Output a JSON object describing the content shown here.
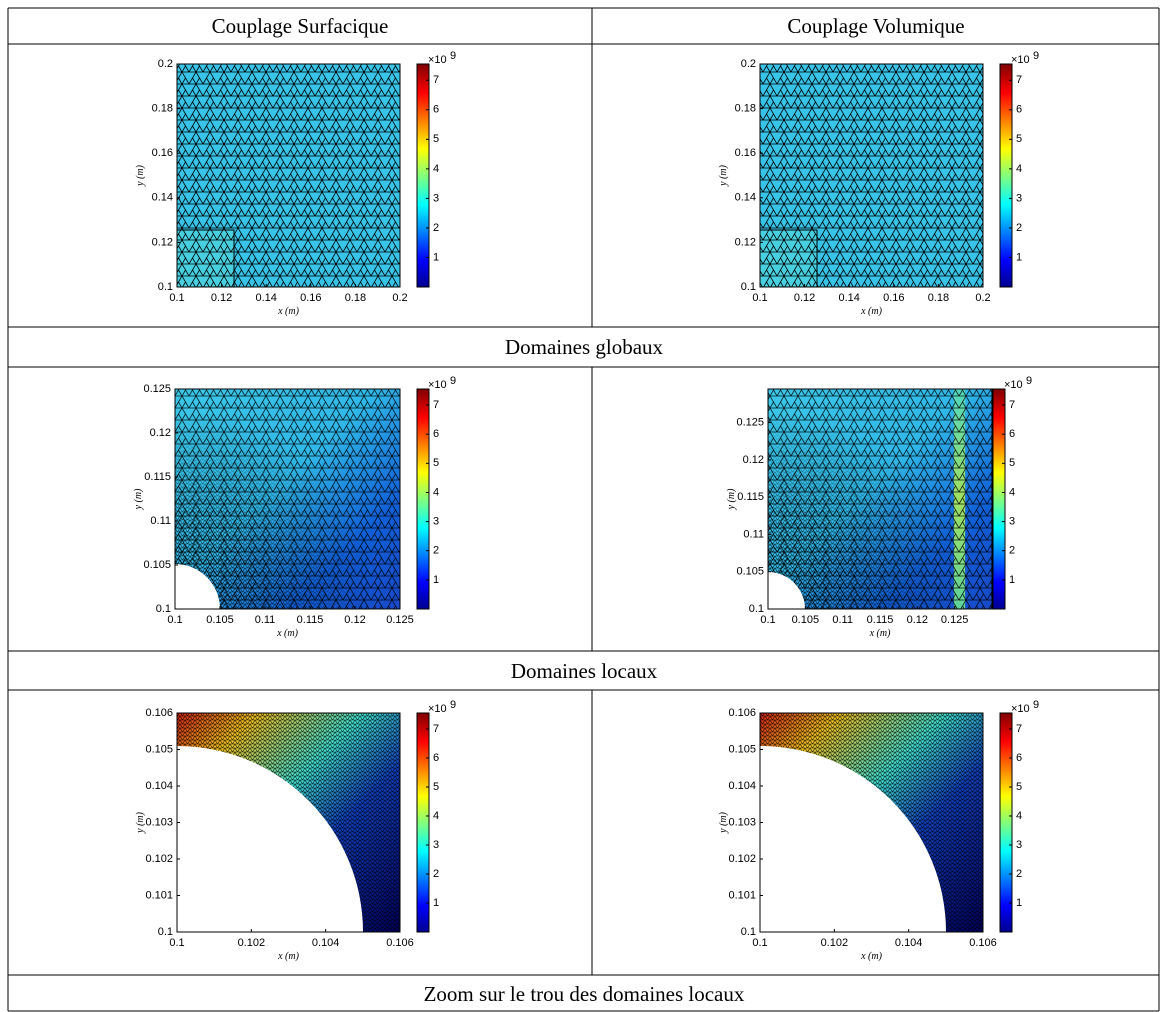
{
  "header": {
    "columns": [
      "Couplage Surfacique",
      "Couplage Volumique"
    ]
  },
  "rows": [
    {
      "plots": [
        {
          "xlim": [
            0.1,
            0.2
          ],
          "xticks": [
            0.1,
            0.12,
            0.14,
            0.16,
            0.18,
            0.2
          ],
          "ylim": [
            0.1,
            0.2
          ],
          "yticks": [
            0.1,
            0.12,
            0.14,
            0.16,
            0.18,
            0.2
          ],
          "xlabel": "x (m)",
          "ylabel": "y (m)",
          "colorbar": {
            "lim": [
              0,
              7.55
            ],
            "ticks": [
              1,
              2,
              3,
              4,
              5,
              6,
              7
            ],
            "exponent": "×10",
            "power": "9"
          }
        },
        {
          "xlim": [
            0.1,
            0.2
          ],
          "xticks": [
            0.1,
            0.12,
            0.14,
            0.16,
            0.18,
            0.2
          ],
          "ylim": [
            0.1,
            0.2
          ],
          "yticks": [
            0.1,
            0.12,
            0.14,
            0.16,
            0.18,
            0.2
          ],
          "xlabel": "x (m)",
          "ylabel": "y (m)",
          "colorbar": {
            "lim": [
              0,
              7.55
            ],
            "ticks": [
              1,
              2,
              3,
              4,
              5,
              6,
              7
            ],
            "exponent": "×10",
            "power": "9"
          }
        }
      ],
      "caption": "Domaines globaux"
    },
    {
      "plots": [
        {
          "xlim": [
            0.1,
            0.125
          ],
          "xticks": [
            0.1,
            0.105,
            0.11,
            0.115,
            0.12,
            0.125
          ],
          "ylim": [
            0.1,
            0.125
          ],
          "yticks": [
            0.1,
            0.105,
            0.11,
            0.115,
            0.12,
            0.125
          ],
          "xlabel": "x (m)",
          "ylabel": "y (m)",
          "colorbar": {
            "lim": [
              0,
              7.55
            ],
            "ticks": [
              1,
              2,
              3,
              4,
              5,
              6,
              7
            ],
            "exponent": "×10",
            "power": "9"
          }
        },
        {
          "xlim": [
            0.1,
            0.13
          ],
          "xticks": [
            0.1,
            0.105,
            0.11,
            0.115,
            0.12,
            0.125
          ],
          "ylim": [
            0.1,
            0.1295
          ],
          "yticks": [
            0.1,
            0.105,
            0.11,
            0.115,
            0.12,
            0.125
          ],
          "xlabel": "x (m)",
          "ylabel": "y (m)",
          "colorbar": {
            "lim": [
              0,
              7.55
            ],
            "ticks": [
              1,
              2,
              3,
              4,
              5,
              6,
              7
            ],
            "exponent": "×10",
            "power": "9"
          }
        }
      ],
      "caption": "Domaines locaux"
    },
    {
      "plots": [
        {
          "xlim": [
            0.1,
            0.106
          ],
          "xticks": [
            0.1,
            0.102,
            0.104,
            0.106
          ],
          "ylim": [
            0.1,
            0.106
          ],
          "yticks": [
            0.1,
            0.101,
            0.102,
            0.103,
            0.104,
            0.105,
            0.106
          ],
          "xlabel": "x (m)",
          "ylabel": "y (m)",
          "colorbar": {
            "lim": [
              0,
              7.55
            ],
            "ticks": [
              1,
              2,
              3,
              4,
              5,
              6,
              7
            ],
            "exponent": "×10",
            "power": "9"
          }
        },
        {
          "xlim": [
            0.1,
            0.106
          ],
          "xticks": [
            0.1,
            0.102,
            0.104,
            0.106
          ],
          "ylim": [
            0.1,
            0.106
          ],
          "yticks": [
            0.1,
            0.101,
            0.102,
            0.103,
            0.104,
            0.105,
            0.106
          ],
          "xlabel": "x (m)",
          "ylabel": "y (m)",
          "colorbar": {
            "lim": [
              0,
              7.55
            ],
            "ticks": [
              1,
              2,
              3,
              4,
              5,
              6,
              7
            ],
            "exponent": "×10",
            "power": "9"
          }
        }
      ],
      "caption": "Zoom sur le trou des domaines locaux"
    }
  ]
}
